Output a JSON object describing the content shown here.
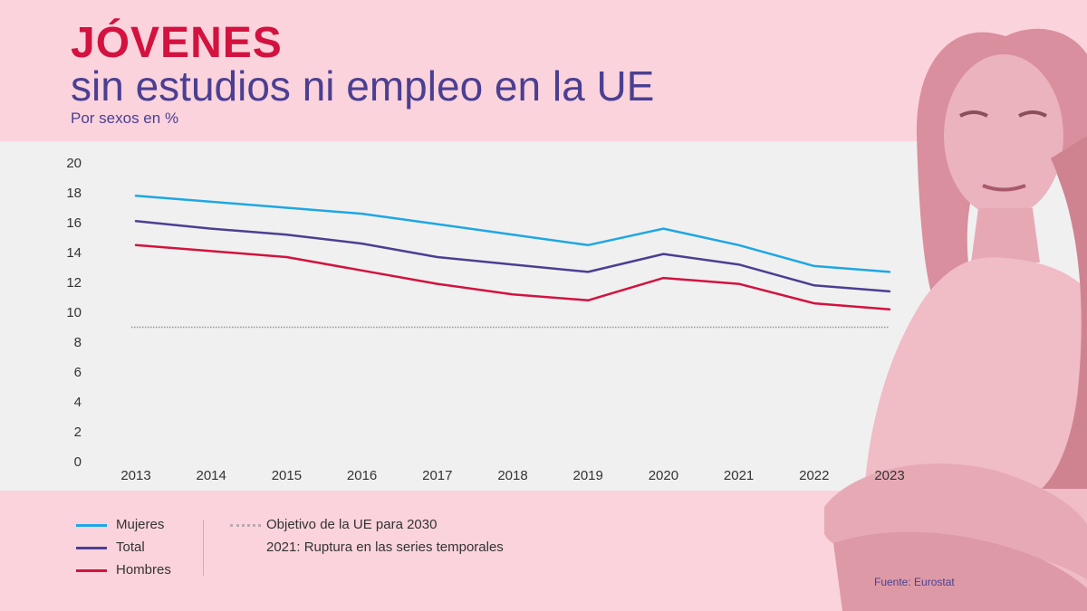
{
  "header": {
    "title_line1": "JÓVENES",
    "title_line2": "sin estudios ni empleo en la UE",
    "subtitle": "Por sexos en %"
  },
  "chart_data": {
    "type": "line",
    "x": [
      "2013",
      "2014",
      "2015",
      "2016",
      "2017",
      "2018",
      "2019",
      "2020",
      "2021",
      "2022",
      "2023"
    ],
    "series": [
      {
        "name": "Mujeres",
        "color": "#1ea7e4",
        "values": [
          17.8,
          17.4,
          17.0,
          16.6,
          15.9,
          15.2,
          14.5,
          15.6,
          14.5,
          13.1,
          12.7
        ]
      },
      {
        "name": "Total",
        "color": "#4b3f92",
        "values": [
          16.1,
          15.6,
          15.2,
          14.6,
          13.7,
          13.2,
          12.7,
          13.9,
          13.2,
          11.8,
          11.4
        ]
      },
      {
        "name": "Hombres",
        "color": "#d3123f",
        "values": [
          14.5,
          14.1,
          13.7,
          12.8,
          11.9,
          11.2,
          10.8,
          12.3,
          11.9,
          10.6,
          10.2
        ]
      }
    ],
    "target": {
      "label": "Objetivo de la UE para 2030",
      "value": 9
    },
    "yticks": [
      0,
      2,
      4,
      6,
      8,
      10,
      12,
      14,
      16,
      18,
      20
    ],
    "ylim": [
      0,
      20
    ],
    "note": "2021: Ruptura en las series temporales"
  },
  "legend": {
    "mujeres": "Mujeres",
    "total": "Total",
    "hombres": "Hombres",
    "target": "Objetivo de la UE para 2030",
    "note": "2021: Ruptura en las series temporales"
  },
  "colors": {
    "background": "#fbd3dc",
    "plot_background": "#f0f0f0",
    "accent_red": "#d3123f",
    "accent_purple": "#4b3f92",
    "accent_blue": "#1ea7e4"
  },
  "source": "Fuente: Eurostat"
}
